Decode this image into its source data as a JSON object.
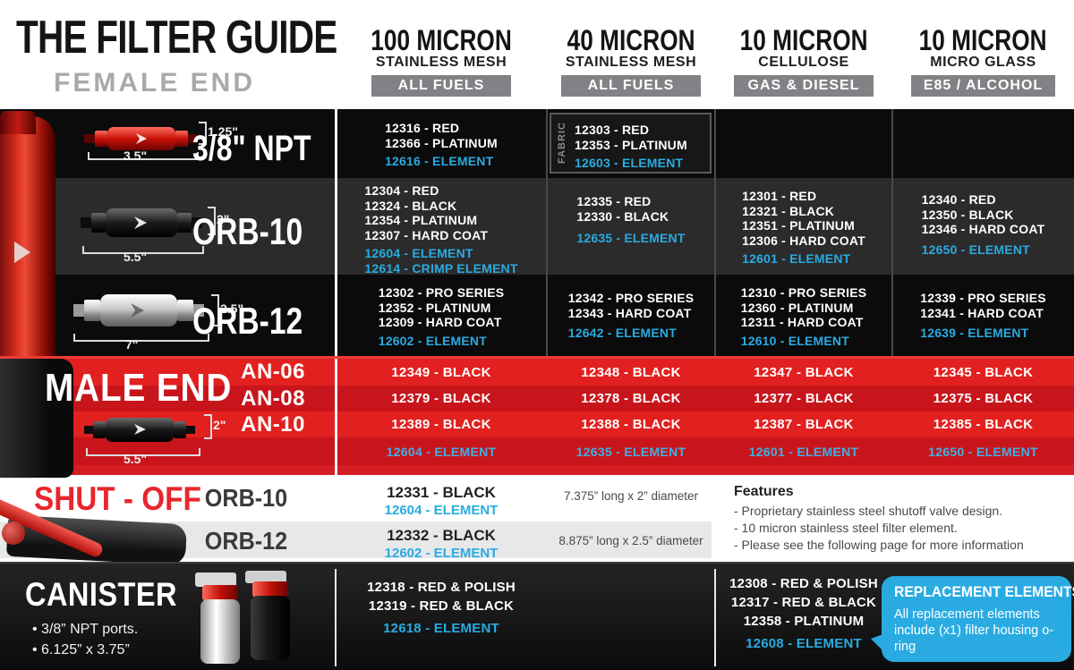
{
  "header": {
    "title": "THE FILTER GUIDE",
    "subtitle": "FEMALE END",
    "columns": [
      {
        "micron": "100 MICRON",
        "media": "STAINLESS MESH",
        "fuel": "ALL FUELS"
      },
      {
        "micron": "40 MICRON",
        "media": "STAINLESS MESH",
        "fuel": "ALL FUELS"
      },
      {
        "micron": "10 MICRON",
        "media": "CELLULOSE",
        "fuel": "GAS & DIESEL"
      },
      {
        "micron": "10 MICRON",
        "media": "MICRO GLASS",
        "fuel": "E85 / ALCOHOL"
      }
    ]
  },
  "female_end": {
    "rows": [
      {
        "label": "3/8\" NPT",
        "dim_height": "1.25\"",
        "dim_length": "3.5\"",
        "tag": "FABRIC",
        "cells": [
          {
            "parts": [
              "12316 - RED",
              "12366 - PLATINUM"
            ],
            "elements": [
              "12616 - ELEMENT"
            ]
          },
          {
            "parts": [
              "12303 - RED",
              "12353 - PLATINUM"
            ],
            "elements": [
              "12603 - ELEMENT"
            ]
          },
          {
            "parts": [],
            "elements": []
          },
          {
            "parts": [],
            "elements": []
          }
        ]
      },
      {
        "label": "ORB-10",
        "dim_height": "2\"",
        "dim_length": "5.5\"",
        "cells": [
          {
            "parts": [
              "12304 - RED",
              "12324 - BLACK",
              "12354 - PLATINUM",
              "12307 - HARD COAT"
            ],
            "elements": [
              "12604 - ELEMENT",
              "12614 - CRIMP ELEMENT"
            ]
          },
          {
            "parts": [
              "12335 - RED",
              "12330 - BLACK"
            ],
            "elements": [
              "12635 - ELEMENT"
            ]
          },
          {
            "parts": [
              "12301 - RED",
              "12321 - BLACK",
              "12351 - PLATINUM",
              "12306 - HARD COAT"
            ],
            "elements": [
              "12601 - ELEMENT"
            ]
          },
          {
            "parts": [
              "12340 - RED",
              "12350 - BLACK",
              "12346 - HARD COAT"
            ],
            "elements": [
              "12650 - ELEMENT"
            ]
          }
        ]
      },
      {
        "label": "ORB-12",
        "dim_height": "2.5\"",
        "dim_length": "7\"",
        "cells": [
          {
            "parts": [
              "12302 - PRO SERIES",
              "12352 - PLATINUM",
              "12309 - HARD COAT"
            ],
            "elements": [
              "12602 - ELEMENT"
            ]
          },
          {
            "parts": [
              "12342 - PRO SERIES",
              "12343 - HARD COAT"
            ],
            "elements": [
              "12642 - ELEMENT"
            ]
          },
          {
            "parts": [
              "12310 - PRO SERIES",
              "12360 - PLATINUM",
              "12311 - HARD COAT"
            ],
            "elements": [
              "12610 - ELEMENT"
            ]
          },
          {
            "parts": [
              "12339 - PRO SERIES",
              "12341 - HARD COAT"
            ],
            "elements": [
              "12639 - ELEMENT"
            ]
          }
        ]
      }
    ]
  },
  "male_end": {
    "label": "MALE END",
    "dim_height": "2\"",
    "dim_length": "5.5\"",
    "rows": [
      {
        "label": "AN-06",
        "cells": [
          "12349 - BLACK",
          "12348 - BLACK",
          "12347 - BLACK",
          "12345 - BLACK"
        ]
      },
      {
        "label": "AN-08",
        "cells": [
          "12379 - BLACK",
          "12378 - BLACK",
          "12377 - BLACK",
          "12375 - BLACK"
        ]
      },
      {
        "label": "AN-10",
        "cells": [
          "12389 - BLACK",
          "12388 - BLACK",
          "12387 - BLACK",
          "12385 - BLACK"
        ]
      }
    ],
    "element_row": [
      "12604 - ELEMENT",
      "12635 - ELEMENT",
      "12601 - ELEMENT",
      "12650 - ELEMENT"
    ]
  },
  "shut_off": {
    "label": "SHUT - OFF",
    "rows": [
      {
        "label": "ORB-10",
        "part": "12331 - BLACK",
        "element": "12604 - ELEMENT",
        "dimensions": "7.375” long x 2” diameter"
      },
      {
        "label": "ORB-12",
        "part": "12332 - BLACK",
        "element": "12602 - ELEMENT",
        "dimensions": "8.875” long x 2.5” diameter"
      }
    ],
    "features": {
      "title": "Features",
      "items": [
        "- Proprietary stainless steel shutoff valve design.",
        "- 10 micron stainless steel filter element.",
        "- Please see the following page for more information"
      ]
    }
  },
  "canister": {
    "label": "CANISTER",
    "bullets": [
      "• 3/8” NPT ports.",
      "• 6.125” x 3.75”"
    ],
    "col_100_micron": {
      "parts": [
        "12318 - RED & POLISH",
        "12319 - RED & BLACK"
      ],
      "elements": [
        "12618 - ELEMENT"
      ]
    },
    "col_10_micron_cellulose": {
      "parts": [
        "12308 - RED & POLISH",
        "12317 - RED & BLACK",
        "12358 - PLATINUM"
      ],
      "elements": [
        "12608 - ELEMENT"
      ]
    },
    "callout": {
      "title": "REPLACEMENT ELEMENTS",
      "body": "All replacement elements include (x1) filter housing o-ring"
    }
  },
  "colors": {
    "accent_blue": "#29abe2",
    "red": "#e2201f",
    "dark_red": "#c8151c",
    "badge_gray": "#808285"
  }
}
